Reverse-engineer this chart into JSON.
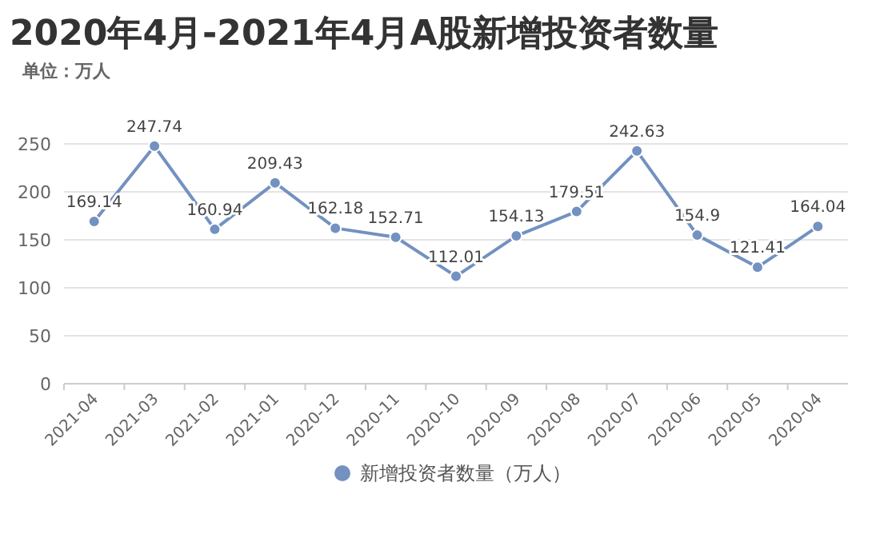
{
  "chart_data": {
    "type": "line",
    "title": "2020年4月-2021年4月A股新增投资者数量",
    "subtitle": "单位：万人",
    "categories": [
      "2021-04",
      "2021-03",
      "2021-02",
      "2021-01",
      "2020-12",
      "2020-11",
      "2020-10",
      "2020-09",
      "2020-08",
      "2020-07",
      "2020-06",
      "2020-05",
      "2020-04"
    ],
    "series": [
      {
        "name": "新增投资者数量（万人）",
        "color": "#7391c1",
        "values": [
          169.14,
          247.74,
          160.94,
          209.43,
          162.18,
          152.71,
          112.01,
          154.13,
          179.51,
          242.63,
          154.9,
          121.41,
          164.04
        ]
      }
    ],
    "ylim": [
      0,
      250
    ],
    "yticks": [
      0,
      50,
      100,
      150,
      200,
      250
    ],
    "grid": "y",
    "legend": "bottom",
    "marker": "circle",
    "line_style": "solid",
    "data_labels": true
  }
}
